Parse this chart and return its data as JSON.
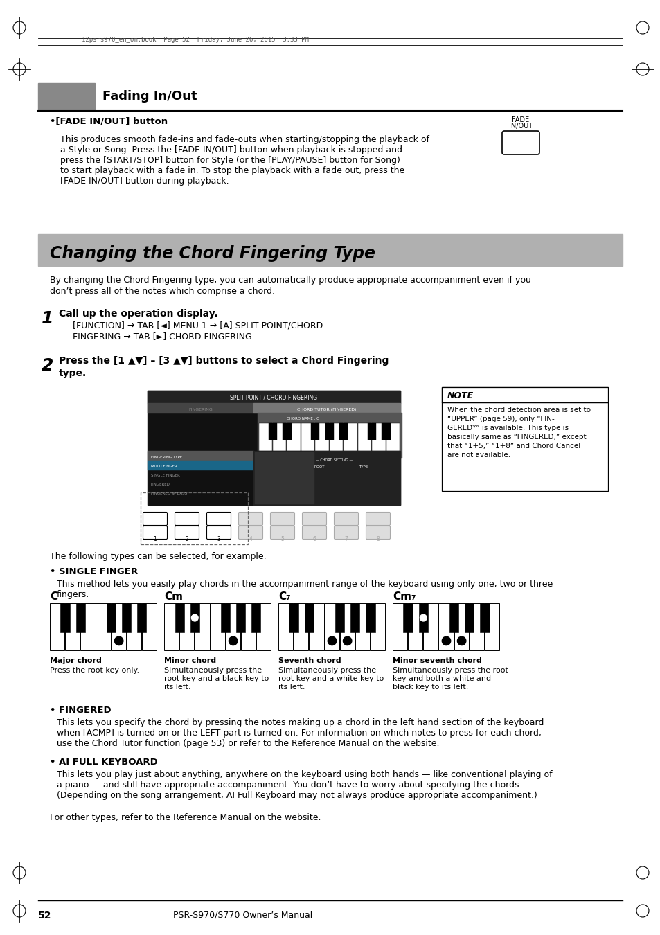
{
  "page_num": "52",
  "manual_name": "PSR-S970/S770 Owner’s Manual",
  "header_text": "12psrs970_en_om.book  Page 52  Friday, June 26, 2015  3:33 PM",
  "section1_title": "Fading In/Out",
  "fade_button_label_top": "FADE",
  "fade_button_label_bot": "IN/OUT",
  "fade_bullet": "•[FADE IN/OUT] button",
  "fade_body_lines": [
    "This produces smooth fade-ins and fade-outs when starting/stopping the playback of",
    "a Style or Song. Press the [FADE IN/OUT] button when playback is stopped and",
    "press the [START/STOP] button for Style (or the [PLAY/PAUSE] button for Song)",
    "to start playback with a fade in. To stop the playback with a fade out, press the",
    "[FADE IN/OUT] button during playback."
  ],
  "section2_title": "Changing the Chord Fingering Type",
  "section2_intro_lines": [
    "By changing the Chord Fingering type, you can automatically produce appropriate accompaniment even if you",
    "don’t press all of the notes which comprise a chord."
  ],
  "step1_num": "1",
  "step1_title": "Call up the operation display.",
  "step1_body_lines": [
    "[FUNCTION] → TAB [◄] MENU 1 → [A] SPLIT POINT/CHORD",
    "FINGERING → TAB [►] CHORD FINGERING"
  ],
  "step2_num": "2",
  "step2_title_lines": [
    "Press the [1 ▲▼] – [3 ▲▼] buttons to select a Chord Fingering",
    "type."
  ],
  "note_title": "NOTE",
  "note_body_lines": [
    "When the chord detection area is set to",
    "“UPPER” (page 59), only “FIN-",
    "GERED*” is available. This type is",
    "basically same as “FINGERED,” except",
    "that “1+5,” “1+8” and Chord Cancel",
    "are not available."
  ],
  "following_types": "The following types can be selected, for example.",
  "single_finger_title": "• SINGLE FINGER",
  "single_finger_body_lines": [
    "This method lets you easily play chords in the accompaniment range of the keyboard using only one, two or three",
    "fingers."
  ],
  "chord_c_label": "C",
  "chord_cm_label": "Cm",
  "chord_c7_label": "C₇",
  "chord_cm7_label": "Cm₇",
  "chord_c_name": "Major chord",
  "chord_cm_name": "Minor chord",
  "chord_c7_name": "Seventh chord",
  "chord_cm7_name": "Minor seventh chord",
  "chord_c_desc_lines": [
    "Press the root key only."
  ],
  "chord_cm_desc_lines": [
    "Simultaneously press the",
    "root key and a black key to",
    "its left."
  ],
  "chord_c7_desc_lines": [
    "Simultaneously press the",
    "root key and a white key to",
    "its left."
  ],
  "chord_cm7_desc_lines": [
    "Simultaneously press the root",
    "key and both a white and",
    "black key to its left."
  ],
  "fingered_title": "• FINGERED",
  "fingered_body_lines": [
    "This lets you specify the chord by pressing the notes making up a chord in the left hand section of the keyboard",
    "when [ACMP] is turned on or the LEFT part is turned on. For information on which notes to press for each chord,",
    "use the Chord Tutor function (page 53) or refer to the Reference Manual on the website."
  ],
  "ai_full_title": "• AI FULL KEYBOARD",
  "ai_full_body_lines": [
    "This lets you play just about anything, anywhere on the keyboard using both hands — like conventional playing of",
    "a piano — and still have appropriate accompaniment. You don’t have to worry about specifying the chords.",
    "(Depending on the song arrangement, AI Full Keyboard may not always produce appropriate accompaniment.)"
  ],
  "other_types": "For other types, refer to the Reference Manual on the website.",
  "bg_color": "#ffffff"
}
